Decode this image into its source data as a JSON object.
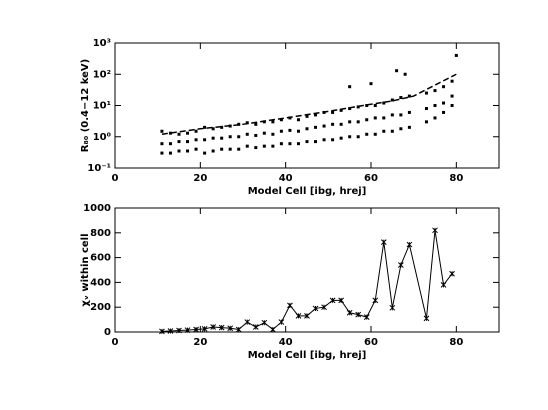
{
  "chart_data": [
    {
      "type": "scatter",
      "xlabel": "Model Cell [ibg, hrej]",
      "ylabel": "R₈₀ (0.4−12 keV)",
      "xlim": [
        0,
        90
      ],
      "xticks": [
        0,
        20,
        40,
        60,
        80
      ],
      "ylim": [
        0.1,
        1000
      ],
      "log_y": true,
      "yticks": [
        {
          "value": 0.1,
          "label": "10⁻¹"
        },
        {
          "value": 1,
          "label": "10⁰"
        },
        {
          "value": 10,
          "label": "10¹"
        },
        {
          "value": 100,
          "label": "10²"
        },
        {
          "value": 1000,
          "label": "10³"
        }
      ],
      "color": "#000000",
      "x": [
        11,
        11,
        11,
        13,
        13,
        13,
        15,
        15,
        15,
        17,
        17,
        17,
        19,
        19,
        19,
        21,
        21,
        21,
        23,
        23,
        23,
        25,
        25,
        25,
        27,
        27,
        27,
        29,
        29,
        29,
        31,
        31,
        31,
        33,
        33,
        33,
        35,
        35,
        35,
        37,
        37,
        37,
        39,
        39,
        39,
        41,
        41,
        41,
        43,
        43,
        43,
        45,
        45,
        45,
        47,
        47,
        47,
        49,
        49,
        49,
        51,
        51,
        51,
        53,
        53,
        53,
        55,
        55,
        55,
        57,
        57,
        57,
        59,
        59,
        59,
        61,
        61,
        61,
        63,
        63,
        63,
        65,
        65,
        65,
        67,
        67,
        67,
        69,
        69,
        69,
        73,
        73,
        73,
        75,
        75,
        75,
        77,
        77,
        77,
        79,
        79,
        79,
        55,
        60,
        66,
        68,
        80
      ],
      "values": [
        0.3,
        0.6,
        1.5,
        0.3,
        0.6,
        1.3,
        0.35,
        0.7,
        1.2,
        0.35,
        0.7,
        1.3,
        0.4,
        0.8,
        1.5,
        0.3,
        0.8,
        2,
        0.35,
        0.9,
        1.8,
        0.4,
        0.9,
        2,
        0.4,
        1,
        2.2,
        0.4,
        1,
        2.5,
        0.5,
        1.2,
        2.8,
        0.45,
        1.1,
        2.5,
        0.5,
        1.3,
        3,
        0.5,
        1.2,
        3,
        0.6,
        1.5,
        3.5,
        0.6,
        1.6,
        4,
        0.6,
        1.5,
        3.5,
        0.7,
        1.8,
        4.5,
        0.7,
        2,
        5,
        0.8,
        2.2,
        6,
        0.8,
        2.5,
        6,
        0.9,
        2.5,
        7,
        1,
        3,
        8,
        1,
        3,
        9,
        1.2,
        3.5,
        10,
        1.2,
        4,
        10,
        1.5,
        4,
        12,
        1.5,
        5,
        15,
        1.8,
        5,
        18,
        2,
        6,
        20,
        3,
        8,
        25,
        4,
        10,
        30,
        6,
        12,
        40,
        10,
        20,
        60,
        40,
        50,
        130,
        100,
        400
      ],
      "fit_x": [
        11,
        20,
        30,
        40,
        50,
        60,
        65,
        70,
        75,
        80
      ],
      "fit_values": [
        1.2,
        1.8,
        2.5,
        4,
        6.5,
        11,
        14,
        20,
        45,
        100
      ]
    },
    {
      "type": "line",
      "xlabel": "Model Cell [ibg, hrej]",
      "ylabel": "χᵥ within cell",
      "xlim": [
        0,
        90
      ],
      "xticks": [
        0,
        20,
        40,
        60,
        80
      ],
      "ylim": [
        0,
        1000
      ],
      "yticks": [
        0,
        200,
        400,
        600,
        800,
        1000
      ],
      "color": "#000000",
      "x": [
        11,
        13,
        15,
        17,
        19,
        21,
        23,
        25,
        27,
        29,
        31,
        33,
        35,
        37,
        39,
        41,
        43,
        45,
        47,
        49,
        51,
        53,
        55,
        57,
        59,
        61,
        63,
        65,
        67,
        69,
        73,
        75,
        77,
        79
      ],
      "values": [
        5,
        8,
        12,
        15,
        20,
        25,
        40,
        35,
        30,
        20,
        80,
        40,
        75,
        20,
        80,
        215,
        130,
        130,
        190,
        200,
        255,
        255,
        155,
        140,
        120,
        255,
        725,
        195,
        540,
        705,
        110,
        820,
        380,
        470
      ]
    }
  ]
}
